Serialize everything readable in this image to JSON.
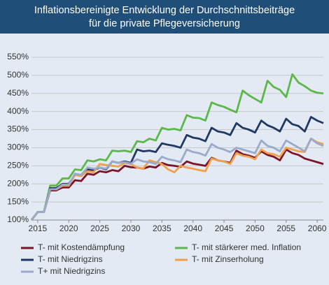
{
  "chart_data": {
    "type": "line",
    "title": "Inflationsbereinigte Entwicklung der Durchschnittsbeiträge",
    "subtitle": "für die private Pflegeversicherung",
    "x": [
      2014,
      2015,
      2016,
      2017,
      2018,
      2019,
      2020,
      2021,
      2022,
      2023,
      2024,
      2025,
      2026,
      2027,
      2028,
      2029,
      2030,
      2031,
      2032,
      2033,
      2034,
      2035,
      2036,
      2037,
      2038,
      2039,
      2040,
      2041,
      2042,
      2043,
      2044,
      2045,
      2046,
      2047,
      2048,
      2049,
      2050,
      2051,
      2052,
      2053,
      2054,
      2055,
      2056,
      2057,
      2058,
      2059,
      2060,
      2061
    ],
    "xlim": [
      2014,
      2061
    ],
    "xticks": [
      2015,
      2020,
      2025,
      2030,
      2035,
      2040,
      2045,
      2050,
      2055,
      2060
    ],
    "ylim": [
      100,
      550
    ],
    "yticks": [
      {
        "value": 100,
        "label": "100%"
      },
      {
        "value": 150,
        "label": "150%"
      },
      {
        "value": 200,
        "label": "200%"
      },
      {
        "value": 250,
        "label": "250%"
      },
      {
        "value": 300,
        "label": "300%"
      },
      {
        "value": 350,
        "label": "350%"
      },
      {
        "value": 400,
        "label": "400%"
      },
      {
        "value": 450,
        "label": "450%"
      },
      {
        "value": 500,
        "label": "500%"
      },
      {
        "value": 550,
        "label": "550%"
      }
    ],
    "grid": true,
    "legend": "bottom",
    "series": [
      {
        "name": "T- mit Kostendämpfung",
        "color": "#7b1428",
        "values": [
          100,
          122,
          122,
          182,
          182,
          190,
          190,
          210,
          208,
          228,
          225,
          235,
          232,
          238,
          235,
          250,
          246,
          245,
          242,
          248,
          245,
          258,
          252,
          250,
          247,
          262,
          256,
          253,
          250,
          272,
          265,
          262,
          258,
          292,
          282,
          278,
          272,
          290,
          280,
          275,
          265,
          295,
          285,
          280,
          270,
          265,
          260,
          255
        ]
      },
      {
        "name": "T- mit stärkerer med. Inflation",
        "color": "#5cb84a",
        "values": [
          100,
          122,
          122,
          195,
          195,
          215,
          215,
          240,
          238,
          265,
          262,
          268,
          265,
          292,
          290,
          292,
          288,
          318,
          315,
          325,
          320,
          355,
          350,
          352,
          348,
          390,
          383,
          382,
          375,
          425,
          418,
          413,
          405,
          398,
          458,
          445,
          435,
          425,
          485,
          468,
          460,
          440,
          503,
          480,
          470,
          458,
          452,
          450
        ]
      },
      {
        "name": "T- mit Niedrigzins",
        "color": "#1f3864",
        "values": [
          100,
          122,
          122,
          188,
          188,
          200,
          200,
          225,
          222,
          240,
          238,
          245,
          240,
          262,
          258,
          262,
          258,
          295,
          290,
          292,
          288,
          312,
          308,
          305,
          300,
          335,
          328,
          325,
          318,
          355,
          345,
          342,
          335,
          368,
          355,
          350,
          342,
          375,
          362,
          355,
          345,
          380,
          365,
          360,
          345,
          385,
          375,
          368
        ]
      },
      {
        "name": "T- mit Zinserholung",
        "color": "#f0a04a",
        "values": [
          100,
          122,
          122,
          185,
          185,
          195,
          195,
          225,
          222,
          235,
          232,
          255,
          252,
          250,
          248,
          258,
          255,
          245,
          242,
          265,
          260,
          255,
          240,
          232,
          250,
          245,
          242,
          238,
          235,
          270,
          265,
          262,
          255,
          285,
          278,
          275,
          268,
          295,
          285,
          282,
          275,
          300,
          295,
          290,
          288,
          325,
          315,
          310
        ]
      },
      {
        "name": "T+ mit Niedrigzins",
        "color": "#9aaacb",
        "values": [
          100,
          122,
          122,
          185,
          185,
          198,
          198,
          228,
          225,
          245,
          242,
          245,
          242,
          262,
          258,
          260,
          256,
          268,
          262,
          260,
          255,
          275,
          268,
          265,
          260,
          295,
          288,
          285,
          278,
          310,
          300,
          295,
          288,
          300,
          295,
          290,
          285,
          320,
          305,
          300,
          290,
          320,
          310,
          300,
          290,
          325,
          312,
          305
        ]
      }
    ]
  }
}
